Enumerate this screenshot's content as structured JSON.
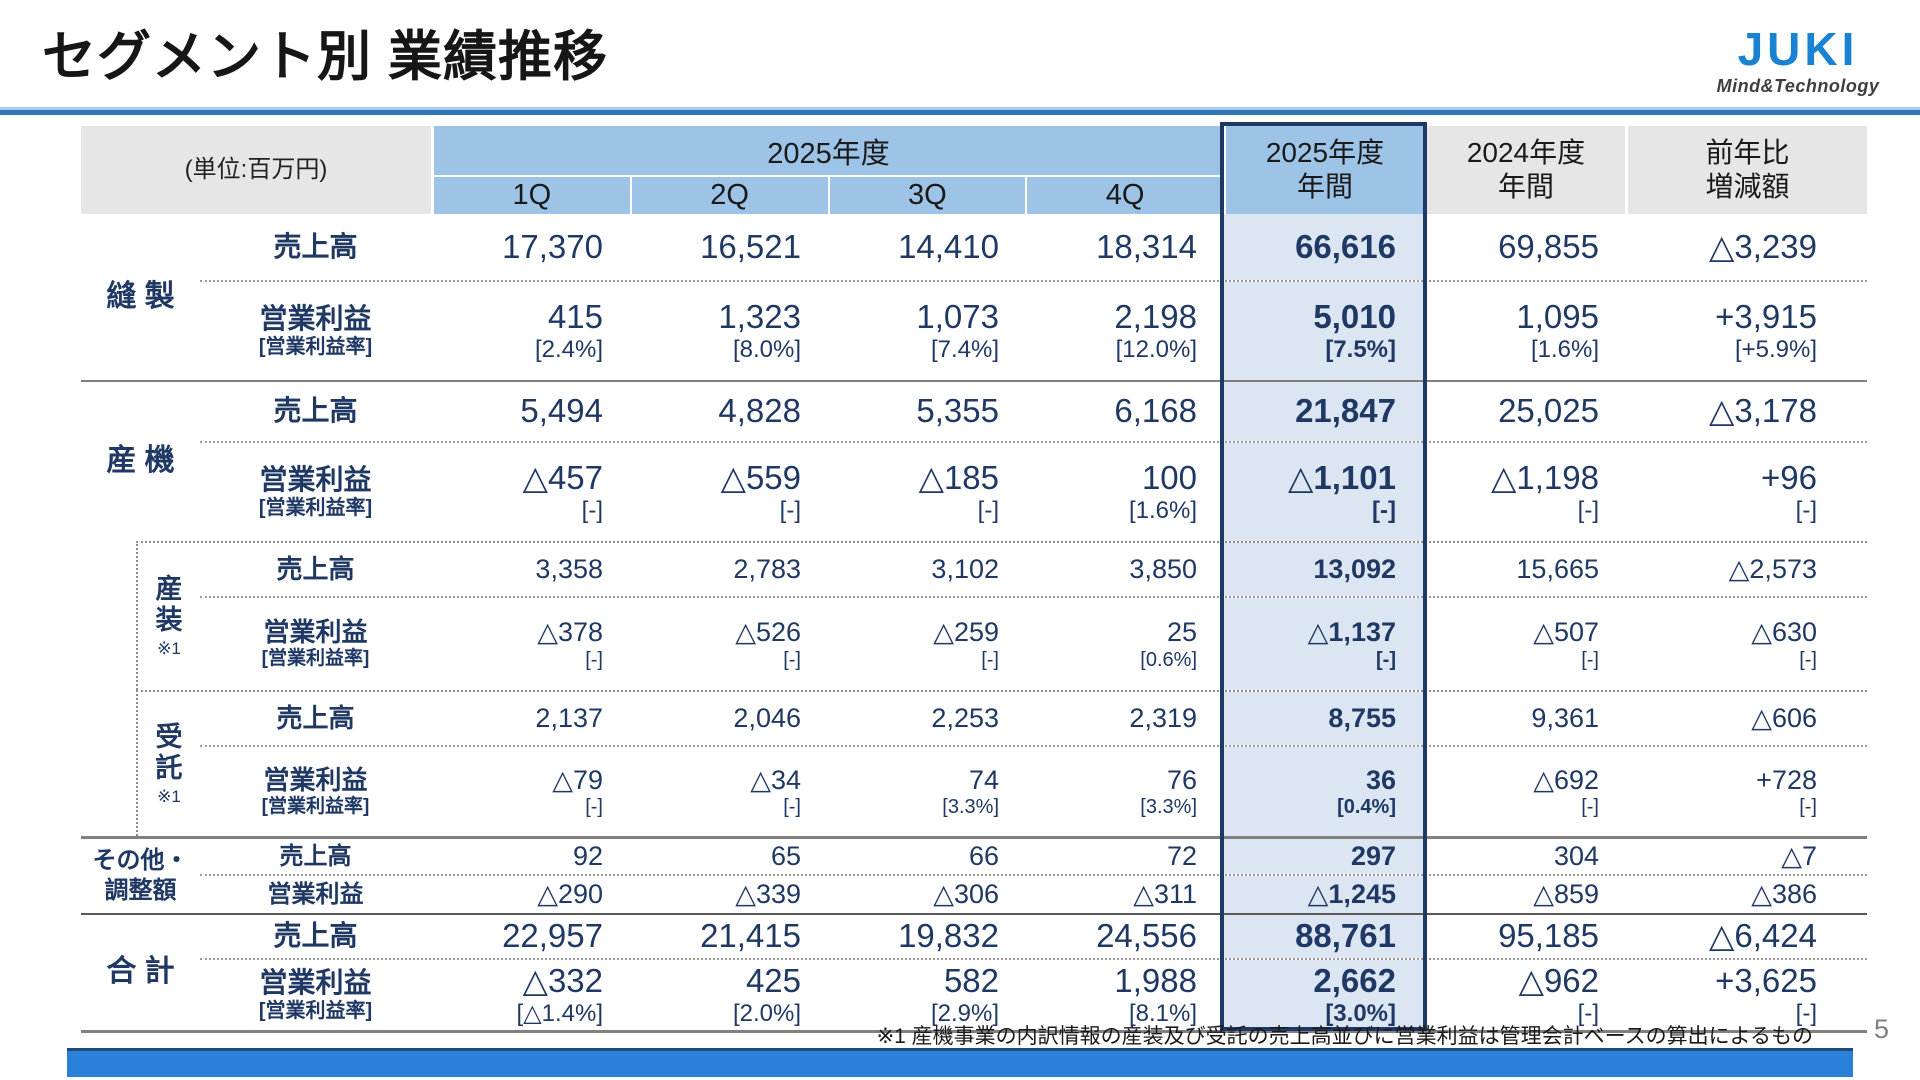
{
  "slide": {
    "title": "セグメント別 業績推移",
    "page_number": "5",
    "footnote": "※1 産機事業の内訳情報の産装及び受託の売上高並びに営業利益は管理会計ベースの算出によるもの",
    "logo": {
      "brand": "JUKI",
      "tagline": "Mind&Technology"
    },
    "colors": {
      "accent_navy": "#1F3864",
      "header_blue": "#9DC3E6",
      "highlight_fill": "#DCE6F2",
      "header_gray": "#E7E6E6",
      "brand_blue": "#1A82D2",
      "rule_blue": "#2E75B6",
      "bottom_bar_blue": "#2B80D9"
    }
  },
  "table": {
    "unit_label": "(単位:百万円)",
    "header": {
      "fy_group_label": "2025年度",
      "quarter_labels": [
        "1Q",
        "2Q",
        "3Q",
        "4Q"
      ],
      "annual_label": "2025年度\n年間",
      "prev_annual_label": "2024年度\n年間",
      "yoy_label": "前年比\n増減額"
    },
    "metrics": {
      "sales": "売上高",
      "profit": "営業利益",
      "margin": "[営業利益率]"
    },
    "groups": [
      {
        "id": "sewing",
        "label": "縫 製",
        "note": "",
        "sub": false,
        "rows": [
          {
            "metric": "sales",
            "values": [
              "17,370",
              "16,521",
              "14,410",
              "18,314",
              "66,616",
              "69,855",
              "△3,239"
            ]
          },
          {
            "metric": "profit",
            "values": [
              "415",
              "1,323",
              "1,073",
              "2,198",
              "5,010",
              "1,095",
              "+3,915"
            ],
            "margins": [
              "[2.4%]",
              "[8.0%]",
              "[7.4%]",
              "[12.0%]",
              "[7.5%]",
              "[1.6%]",
              "[+5.9%]"
            ]
          }
        ]
      },
      {
        "id": "industrial",
        "label": "産 機",
        "note": "",
        "sub": false,
        "rows": [
          {
            "metric": "sales",
            "values": [
              "5,494",
              "4,828",
              "5,355",
              "6,168",
              "21,847",
              "25,025",
              "△3,178"
            ]
          },
          {
            "metric": "profit",
            "values": [
              "△457",
              "△559",
              "△185",
              "100",
              "△1,101",
              "△1,198",
              "+96"
            ],
            "margins": [
              "[-]",
              "[-]",
              "[-]",
              "[1.6%]",
              "[-]",
              "[-]",
              "[-]"
            ]
          }
        ]
      },
      {
        "id": "sanso",
        "label": "産\n装",
        "note": "※1",
        "sub": true,
        "rows": [
          {
            "metric": "sales",
            "values": [
              "3,358",
              "2,783",
              "3,102",
              "3,850",
              "13,092",
              "15,665",
              "△2,573"
            ]
          },
          {
            "metric": "profit",
            "values": [
              "△378",
              "△526",
              "△259",
              "25",
              "△1,137",
              "△507",
              "△630"
            ],
            "margins": [
              "[-]",
              "[-]",
              "[-]",
              "[0.6%]",
              "[-]",
              "[-]",
              "[-]"
            ]
          }
        ]
      },
      {
        "id": "jutaku",
        "label": "受\n託",
        "note": "※1",
        "sub": true,
        "rows": [
          {
            "metric": "sales",
            "values": [
              "2,137",
              "2,046",
              "2,253",
              "2,319",
              "8,755",
              "9,361",
              "△606"
            ]
          },
          {
            "metric": "profit",
            "values": [
              "△79",
              "△34",
              "74",
              "76",
              "36",
              "△692",
              "+728"
            ],
            "margins": [
              "[-]",
              "[-]",
              "[3.3%]",
              "[3.3%]",
              "[0.4%]",
              "[-]",
              "[-]"
            ]
          }
        ]
      },
      {
        "id": "other",
        "label": "その他・\n調整額",
        "note": "",
        "sub": false,
        "rows": [
          {
            "metric": "sales",
            "values": [
              "92",
              "65",
              "66",
              "72",
              "297",
              "304",
              "△7"
            ]
          },
          {
            "metric": "profit",
            "values": [
              "△290",
              "△339",
              "△306",
              "△311",
              "△1,245",
              "△859",
              "△386"
            ]
          }
        ]
      },
      {
        "id": "total",
        "label": "合 計",
        "note": "",
        "sub": false,
        "rows": [
          {
            "metric": "sales",
            "values": [
              "22,957",
              "21,415",
              "19,832",
              "24,556",
              "88,761",
              "95,185",
              "△6,424"
            ]
          },
          {
            "metric": "profit",
            "values": [
              "△332",
              "425",
              "582",
              "1,988",
              "2,662",
              "△962",
              "+3,625"
            ],
            "margins": [
              "[△1.4%]",
              "[2.0%]",
              "[2.9%]",
              "[8.1%]",
              "[3.0%]",
              "[-]",
              "[-]"
            ]
          }
        ]
      }
    ]
  }
}
